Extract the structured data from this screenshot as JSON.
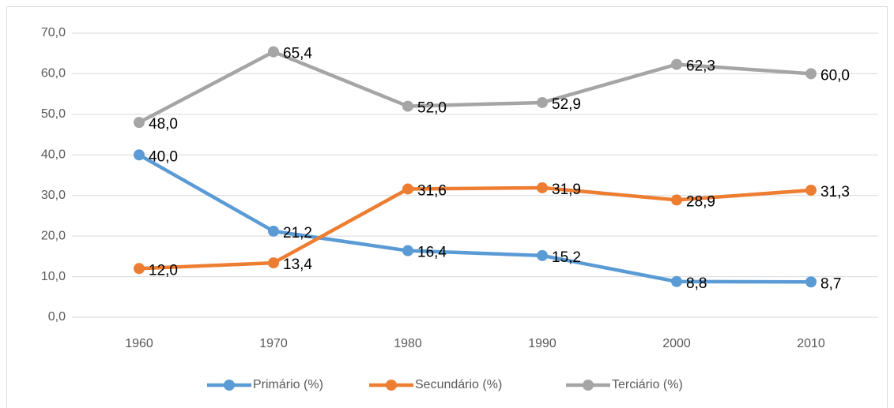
{
  "chart_data": {
    "type": "line",
    "categories": [
      "1960",
      "1970",
      "1980",
      "1990",
      "2000",
      "2010"
    ],
    "series": [
      {
        "name": "Primário (%)",
        "color": "#5b9bd5",
        "values": [
          40.0,
          21.2,
          16.4,
          15.2,
          8.8,
          8.7
        ],
        "value_labels": [
          "40,0",
          "21,2",
          "16,4",
          "15,2",
          "8,8",
          "8,7"
        ]
      },
      {
        "name": "Secundário (%)",
        "color": "#ed7d31",
        "values": [
          12.0,
          13.4,
          31.6,
          31.9,
          28.9,
          31.3
        ],
        "value_labels": [
          "12,0",
          "13,4",
          "31,6",
          "31,9",
          "28,9",
          "31,3"
        ]
      },
      {
        "name": "Terciário (%)",
        "color": "#a5a5a5",
        "values": [
          48.0,
          65.4,
          52.0,
          52.9,
          62.3,
          60.0
        ],
        "value_labels": [
          "48,0",
          "65,4",
          "52,0",
          "52,9",
          "62,3",
          "60,0"
        ]
      }
    ],
    "ylim": [
      0,
      70
    ],
    "yticks": [
      {
        "value": 0,
        "label": "0,0"
      },
      {
        "value": 10,
        "label": "10,0"
      },
      {
        "value": 20,
        "label": "20,0"
      },
      {
        "value": 30,
        "label": "30,0"
      },
      {
        "value": 40,
        "label": "40,0"
      },
      {
        "value": 50,
        "label": "50,0"
      },
      {
        "value": 60,
        "label": "60,0"
      },
      {
        "value": 70,
        "label": "70,0"
      }
    ],
    "grid": true,
    "legend": "bottom"
  }
}
